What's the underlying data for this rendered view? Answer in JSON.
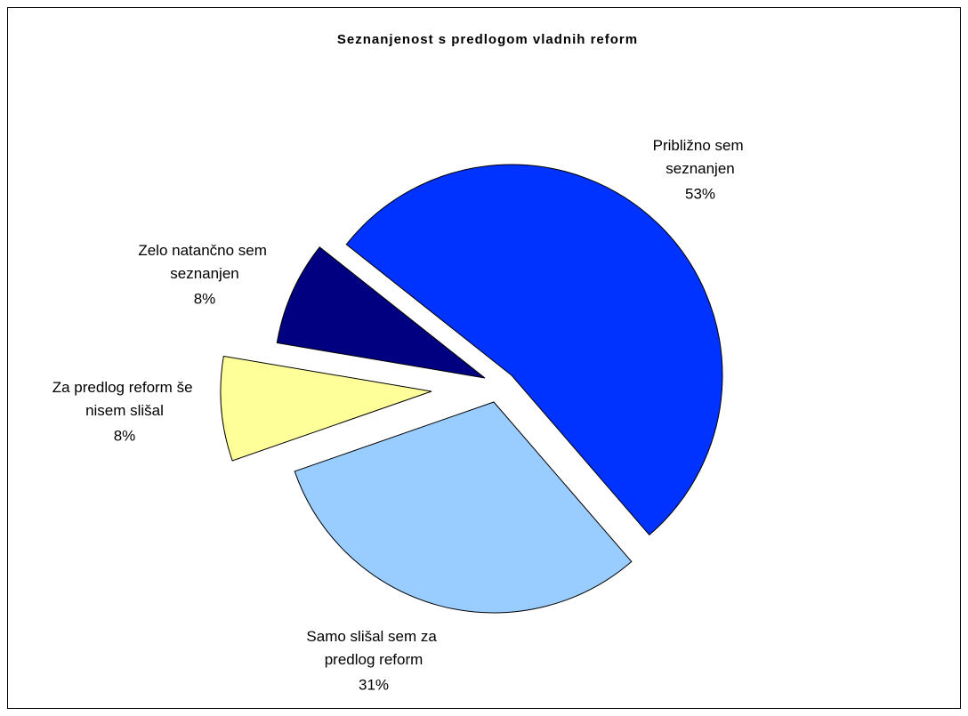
{
  "chart_data": {
    "type": "pie",
    "title": "Seznanjenost s predlogom vladnih reform",
    "categories": [
      "Približno sem seznanjen",
      "Samo slišal sem za predlog reform",
      "Za predlog reform še nisem slišal",
      "Zelo natančno sem seznanjen"
    ],
    "values": [
      53,
      31,
      8,
      8
    ],
    "value_labels": [
      "53%",
      "31%",
      "8%",
      "8%"
    ],
    "colors": [
      "#0033ff",
      "#99ccff",
      "#ffff99",
      "#000080"
    ]
  }
}
